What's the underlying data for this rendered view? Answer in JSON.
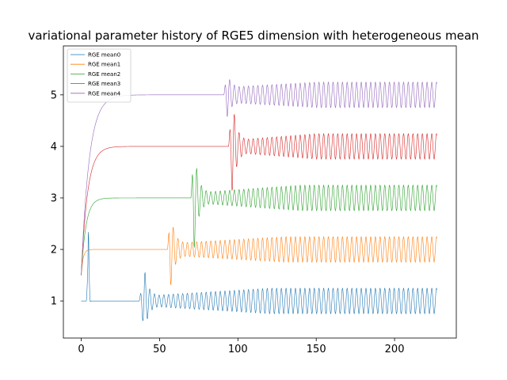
{
  "chart_data": {
    "type": "line",
    "title": "variational parameter history of RGE5 dimension with heterogeneous mean",
    "xlabel": "",
    "ylabel": "",
    "xlim": [
      -11.4,
      239.4
    ],
    "ylim": [
      0.28,
      5.95
    ],
    "xticks": [
      0,
      50,
      100,
      150,
      200
    ],
    "yticks": [
      1,
      2,
      3,
      4,
      5
    ],
    "grid": false,
    "legend_position": "top-left",
    "x_max": 227,
    "series": [
      {
        "name": "RGE mean0",
        "color": "#1f77b4",
        "start": 1.0,
        "target": 1.0,
        "tau": 1.0,
        "spikes": [
          [
            3.4,
            1.0
          ],
          [
            4.2,
            1.6
          ],
          [
            4.6,
            2.58
          ],
          [
            5.0,
            1.6
          ],
          [
            5.6,
            0.98
          ],
          [
            6.2,
            1.0
          ]
        ],
        "osc_start": 37,
        "osc_peak": 40.5,
        "osc_amp_peak": 0.6,
        "osc_amp_base": 0.1,
        "osc_amp_final": 0.25,
        "osc_growth_end": 120,
        "osc_period": 3.0
      },
      {
        "name": "RGE mean1",
        "color": "#ff7f0e",
        "start": 1.5,
        "target": 2.0,
        "tau": 1.2,
        "spikes": [],
        "osc_start": 55,
        "osc_peak": 57,
        "osc_amp_peak": 0.75,
        "osc_amp_base": 0.12,
        "osc_amp_final": 0.25,
        "osc_growth_end": 130,
        "osc_period": 3.0
      },
      {
        "name": "RGE mean2",
        "color": "#2ca02c",
        "start": 1.5,
        "target": 3.0,
        "tau": 3.0,
        "spikes": [],
        "osc_start": 70,
        "osc_peak": 72,
        "osc_amp_peak": 1.05,
        "osc_amp_base": 0.1,
        "osc_amp_final": 0.25,
        "osc_growth_end": 140,
        "osc_period": 3.0
      },
      {
        "name": "RGE mean3",
        "color": "#d62728",
        "start": 1.5,
        "target": 4.0,
        "tau": 4.0,
        "spikes": [],
        "osc_start": 94,
        "osc_peak": 96.5,
        "osc_amp_peak": 0.95,
        "osc_amp_base": 0.12,
        "osc_amp_final": 0.25,
        "osc_growth_end": 150,
        "osc_period": 3.0
      },
      {
        "name": "RGE mean4",
        "color": "#9467bd",
        "start": 1.5,
        "target": 5.0,
        "tau": 5.0,
        "spikes": [],
        "osc_start": 91,
        "osc_peak": 93,
        "osc_amp_peak": 0.45,
        "osc_amp_base": 0.15,
        "osc_amp_final": 0.25,
        "osc_growth_end": 150,
        "osc_period": 3.0
      }
    ]
  }
}
